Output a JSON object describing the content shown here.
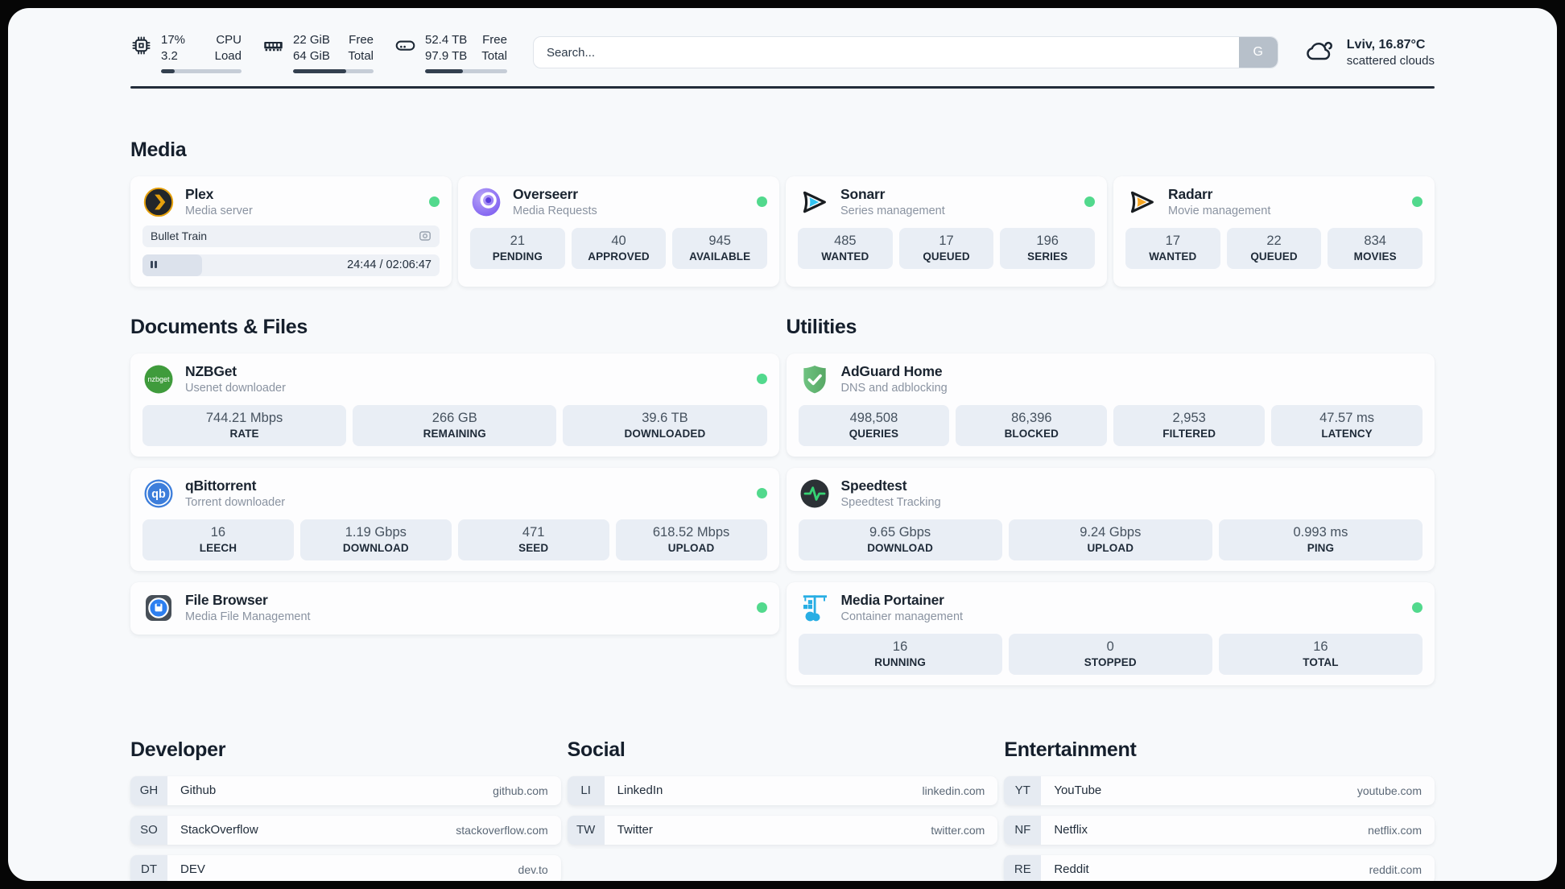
{
  "header": {
    "stats": [
      {
        "icon": "cpu-icon",
        "value_top": "17%",
        "value_bottom": "3.2",
        "label_top": "CPU",
        "label_bottom": "Load",
        "progress_pct": 17
      },
      {
        "icon": "ram-icon",
        "value_top": "22 GiB",
        "value_bottom": "64 GiB",
        "label_top": "Free",
        "label_bottom": "Total",
        "progress_pct": 66
      },
      {
        "icon": "disk-icon",
        "value_top": "52.4 TB",
        "value_bottom": "97.9 TB",
        "label_top": "Free",
        "label_bottom": "Total",
        "progress_pct": 46
      }
    ],
    "search": {
      "placeholder": "Search...",
      "button_label": "G"
    },
    "weather": {
      "location_temp": "Lviv, 16.87°C",
      "condition": "scattered clouds"
    }
  },
  "media": {
    "title": "Media",
    "cards": [
      {
        "id": "plex",
        "icon": "plex-icon",
        "title": "Plex",
        "subtitle": "Media server",
        "online": true,
        "player": {
          "track": "Bullet Train",
          "time": "24:44 / 02:06:47",
          "progress_pct": 20
        }
      },
      {
        "id": "overseerr",
        "icon": "overseerr-icon",
        "title": "Overseerr",
        "subtitle": "Media Requests",
        "online": true,
        "stats": [
          {
            "value": "21",
            "label": "PENDING"
          },
          {
            "value": "40",
            "label": "APPROVED"
          },
          {
            "value": "945",
            "label": "AVAILABLE"
          }
        ]
      },
      {
        "id": "sonarr",
        "icon": "sonarr-icon",
        "title": "Sonarr",
        "subtitle": "Series management",
        "online": true,
        "stats": [
          {
            "value": "485",
            "label": "WANTED"
          },
          {
            "value": "17",
            "label": "QUEUED"
          },
          {
            "value": "196",
            "label": "SERIES"
          }
        ]
      },
      {
        "id": "radarr",
        "icon": "radarr-icon",
        "title": "Radarr",
        "subtitle": "Movie management",
        "online": true,
        "stats": [
          {
            "value": "17",
            "label": "WANTED"
          },
          {
            "value": "22",
            "label": "QUEUED"
          },
          {
            "value": "834",
            "label": "MOVIES"
          }
        ]
      }
    ]
  },
  "docs": {
    "title": "Documents & Files",
    "cards": [
      {
        "id": "nzbget",
        "icon": "nzbget-icon",
        "title": "NZBGet",
        "subtitle": "Usenet downloader",
        "online": true,
        "stats": [
          {
            "value": "744.21 Mbps",
            "label": "RATE"
          },
          {
            "value": "266 GB",
            "label": "REMAINING"
          },
          {
            "value": "39.6 TB",
            "label": "DOWNLOADED"
          }
        ]
      },
      {
        "id": "qbittorrent",
        "icon": "qbittorrent-icon",
        "title": "qBittorrent",
        "subtitle": "Torrent downloader",
        "online": true,
        "stats": [
          {
            "value": "16",
            "label": "LEECH"
          },
          {
            "value": "1.19 Gbps",
            "label": "DOWNLOAD"
          },
          {
            "value": "471",
            "label": "SEED"
          },
          {
            "value": "618.52 Mbps",
            "label": "UPLOAD"
          }
        ]
      },
      {
        "id": "filebrowser",
        "icon": "filebrowser-icon",
        "title": "File Browser",
        "subtitle": "Media File Management",
        "online": true
      }
    ]
  },
  "utils": {
    "title": "Utilities",
    "cards": [
      {
        "id": "adguard",
        "icon": "adguard-icon",
        "title": "AdGuard Home",
        "subtitle": "DNS and adblocking",
        "online": false,
        "stats": [
          {
            "value": "498,508",
            "label": "QUERIES"
          },
          {
            "value": "86,396",
            "label": "BLOCKED"
          },
          {
            "value": "2,953",
            "label": "FILTERED"
          },
          {
            "value": "47.57 ms",
            "label": "LATENCY"
          }
        ]
      },
      {
        "id": "speedtest",
        "icon": "speedtest-icon",
        "title": "Speedtest",
        "subtitle": "Speedtest Tracking",
        "online": false,
        "stats": [
          {
            "value": "9.65 Gbps",
            "label": "DOWNLOAD"
          },
          {
            "value": "9.24 Gbps",
            "label": "UPLOAD"
          },
          {
            "value": "0.993 ms",
            "label": "PING"
          }
        ]
      },
      {
        "id": "portainer",
        "icon": "portainer-icon",
        "title": "Media Portainer",
        "subtitle": "Container management",
        "online": true,
        "stats": [
          {
            "value": "16",
            "label": "RUNNING"
          },
          {
            "value": "0",
            "label": "STOPPED"
          },
          {
            "value": "16",
            "label": "TOTAL"
          }
        ]
      }
    ]
  },
  "links": {
    "columns": [
      {
        "title": "Developer",
        "items": [
          {
            "abbrev": "GH",
            "title": "Github",
            "url": "github.com"
          },
          {
            "abbrev": "SO",
            "title": "StackOverflow",
            "url": "stackoverflow.com"
          },
          {
            "abbrev": "DT",
            "title": "DEV",
            "url": "dev.to"
          }
        ]
      },
      {
        "title": "Social",
        "items": [
          {
            "abbrev": "LI",
            "title": "LinkedIn",
            "url": "linkedin.com"
          },
          {
            "abbrev": "TW",
            "title": "Twitter",
            "url": "twitter.com"
          }
        ]
      },
      {
        "title": "Entertainment",
        "items": [
          {
            "abbrev": "YT",
            "title": "YouTube",
            "url": "youtube.com"
          },
          {
            "abbrev": "NF",
            "title": "Netflix",
            "url": "netflix.com"
          },
          {
            "abbrev": "RE",
            "title": "Reddit",
            "url": "reddit.com"
          }
        ]
      }
    ]
  },
  "colors": {
    "status_online": "#52d98d",
    "divider": "#232d3a",
    "pill_bg": "#e9eef5"
  }
}
